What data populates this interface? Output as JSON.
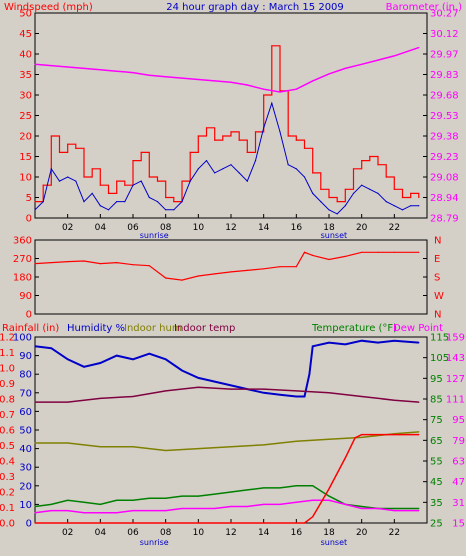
{
  "header": {
    "wind_title": "Windspeed (mph)",
    "graph_title": "24 hour graph day : March 15 2009",
    "baro_title": "Barometer (in.)"
  },
  "xaxis": {
    "ticks": [
      "02",
      "04",
      "06",
      "08",
      "10",
      "12",
      "14",
      "16",
      "18",
      "20",
      "22"
    ],
    "sunrise_label": "sunrise",
    "sunset_label": "sunset"
  },
  "panel3_header": {
    "rain_label": "Rainfall (in)",
    "humidity_label": "Humidity %",
    "indoor_hum_label": "Indoor hum",
    "indoor_temp_label": "Indoor temp",
    "temp_label": "Temperature (°F)",
    "dew_label": "Dew Point"
  },
  "colors": {
    "background": "#d4d0c8",
    "wind": "#ff0000",
    "avg_wind": "#0000c8",
    "barometer": "#ff00ff",
    "direction": "#ff0000",
    "humidity": "#0000c8",
    "indoor_hum": "#808000",
    "indoor_temp": "#800040",
    "temperature": "#008000",
    "dew_point": "#ff00ff",
    "rain": "#ff0000",
    "axis_text": "#000000"
  },
  "chart_data": [
    {
      "id": "wind",
      "type": "line",
      "title": "24 hour graph day : March 15 2009",
      "ylabel": "Windspeed (mph)",
      "y2label": "Barometer (in.)",
      "y_ticks": [
        "0",
        "5",
        "10",
        "15",
        "20",
        "25",
        "30",
        "35",
        "40",
        "45",
        "50"
      ],
      "y2_ticks": [
        "28.79",
        "28.94",
        "29.08",
        "29.23",
        "29.38",
        "29.53",
        "29.68",
        "29.83",
        "29.97",
        "30.12",
        "30.27"
      ],
      "ylim": [
        0,
        50
      ],
      "y2lim": [
        28.79,
        30.27
      ],
      "x_range_hours": [
        0,
        24
      ],
      "series": [
        {
          "name": "Windspeed (mph)",
          "axis": "left",
          "style": "gust",
          "x": [
            0,
            0.5,
            1,
            1.5,
            2,
            2.5,
            3,
            3.5,
            4,
            4.5,
            5,
            5.5,
            6,
            6.5,
            7,
            7.5,
            8,
            8.5,
            9,
            9.5,
            10,
            10.5,
            11,
            11.5,
            12,
            12.5,
            13,
            13.5,
            14,
            14.5,
            15,
            15.5,
            16,
            16.5,
            17,
            17.5,
            18,
            18.5,
            19,
            19.5,
            20,
            20.5,
            21,
            21.5,
            22,
            22.5,
            23,
            23.5
          ],
          "y": [
            4,
            8,
            20,
            16,
            18,
            17,
            10,
            12,
            8,
            6,
            9,
            8,
            14,
            16,
            10,
            9,
            5,
            4,
            9,
            16,
            20,
            22,
            19,
            20,
            21,
            19,
            16,
            21,
            30,
            42,
            31,
            20,
            19,
            17,
            11,
            7,
            5,
            4,
            7,
            12,
            14,
            15,
            13,
            10,
            7,
            5,
            6,
            5
          ]
        },
        {
          "name": "Average wind",
          "axis": "left",
          "style": "avg",
          "x": [
            0,
            0.5,
            1,
            1.5,
            2,
            2.5,
            3,
            3.5,
            4,
            4.5,
            5,
            5.5,
            6,
            6.5,
            7,
            7.5,
            8,
            8.5,
            9,
            9.5,
            10,
            10.5,
            11,
            11.5,
            12,
            12.5,
            13,
            13.5,
            14,
            14.5,
            15,
            15.5,
            16,
            16.5,
            17,
            17.5,
            18,
            18.5,
            19,
            19.5,
            20,
            20.5,
            21,
            21.5,
            22,
            22.5,
            23,
            23.5
          ],
          "y": [
            2,
            4,
            12,
            9,
            10,
            9,
            4,
            6,
            3,
            2,
            4,
            4,
            8,
            9,
            5,
            4,
            2,
            2,
            4,
            9,
            12,
            14,
            11,
            12,
            13,
            11,
            9,
            14,
            22,
            28,
            21,
            13,
            12,
            10,
            6,
            4,
            2,
            1,
            3,
            6,
            8,
            7,
            6,
            4,
            3,
            2,
            3,
            3
          ]
        },
        {
          "name": "Barometer (in.)",
          "axis": "right",
          "style": "baro",
          "x": [
            0,
            1,
            2,
            3,
            4,
            5,
            6,
            7,
            8,
            9,
            10,
            11,
            12,
            13,
            14,
            15,
            16,
            17,
            18,
            19,
            20,
            21,
            22,
            23.5
          ],
          "y": [
            29.9,
            29.89,
            29.88,
            29.87,
            29.86,
            29.85,
            29.84,
            29.82,
            29.81,
            29.8,
            29.79,
            29.78,
            29.77,
            29.75,
            29.72,
            29.7,
            29.72,
            29.78,
            29.83,
            29.87,
            29.9,
            29.93,
            29.96,
            30.02
          ]
        }
      ]
    },
    {
      "id": "direction",
      "type": "line",
      "ylabel": "Wind direction (degrees)",
      "y_ticks": [
        "0",
        "90",
        "180",
        "270",
        "360"
      ],
      "y2_ticks": [
        "N",
        "W",
        "S",
        "E",
        "N"
      ],
      "ylim": [
        0,
        360
      ],
      "x_range_hours": [
        0,
        24
      ],
      "series": [
        {
          "name": "Wind direction",
          "axis": "left",
          "style": "dir",
          "x": [
            0,
            1,
            2,
            3,
            4,
            5,
            6,
            7,
            8,
            9,
            10,
            11,
            12,
            13,
            14,
            15,
            16,
            16.5,
            17,
            18,
            19,
            20,
            21,
            22,
            23.5
          ],
          "y": [
            245,
            250,
            255,
            258,
            245,
            250,
            240,
            235,
            175,
            165,
            185,
            195,
            205,
            212,
            220,
            230,
            230,
            300,
            285,
            265,
            280,
            300,
            300,
            300,
            300
          ]
        }
      ]
    },
    {
      "id": "thermo",
      "type": "line",
      "ylabel": "Rainfall (in)",
      "y2label": "Temperature (°F)",
      "y_ticks": [
        "0.0",
        "0.1",
        "0.2",
        "0.3",
        "0.4",
        "0.5",
        "0.6",
        "0.7",
        "0.8",
        "0.9",
        "1.0",
        "1.1",
        "1.2"
      ],
      "y_ticks_hum": [
        "0",
        "10",
        "20",
        "30",
        "40",
        "50",
        "60",
        "70",
        "80",
        "90",
        "100"
      ],
      "y2_ticks": [
        "25",
        "35",
        "45",
        "55",
        "65",
        "75",
        "85",
        "95",
        "105",
        "115"
      ],
      "y2_ticks_b": [
        "15",
        "31",
        "47",
        "63",
        "79",
        "95",
        "111",
        "127",
        "143",
        "159"
      ],
      "ylim": [
        0,
        100
      ],
      "y2lim": [
        25,
        115
      ],
      "x_range_hours": [
        0,
        24
      ],
      "series": [
        {
          "name": "Humidity %",
          "axis": "hum",
          "style": "hum",
          "x": [
            0,
            1,
            2,
            3,
            4,
            5,
            6,
            7,
            8,
            9,
            10,
            11,
            12,
            13,
            14,
            15,
            16,
            16.5,
            16.8,
            17,
            18,
            19,
            20,
            21,
            22,
            23.5
          ],
          "y": [
            95,
            94,
            88,
            84,
            86,
            90,
            88,
            91,
            88,
            82,
            78,
            76,
            74,
            72,
            70,
            69,
            68,
            68,
            80,
            95,
            97,
            96,
            98,
            97,
            98,
            97
          ]
        },
        {
          "name": "Indoor hum",
          "axis": "hum",
          "style": "ihum",
          "x": [
            0,
            2,
            4,
            6,
            8,
            10,
            12,
            14,
            16,
            18,
            20,
            22,
            23.5
          ],
          "y": [
            43,
            43,
            41,
            41,
            39,
            40,
            41,
            42,
            44,
            45,
            46,
            48,
            49
          ]
        },
        {
          "name": "Indoor temp",
          "axis": "hum",
          "style": "itemp",
          "x": [
            0,
            2,
            4,
            6,
            8,
            10,
            12,
            14,
            16,
            18,
            20,
            22,
            23.5
          ],
          "y": [
            65,
            65,
            67,
            68,
            71,
            73,
            72,
            72,
            71,
            70,
            68,
            66,
            65
          ]
        },
        {
          "name": "Temperature (°F)",
          "axis": "temp",
          "style": "temp",
          "x": [
            0,
            1,
            2,
            3,
            4,
            5,
            6,
            7,
            8,
            9,
            10,
            11,
            12,
            13,
            14,
            15,
            16,
            17,
            18,
            19,
            20,
            21,
            22,
            23.5
          ],
          "y": [
            33,
            34,
            36,
            35,
            34,
            36,
            36,
            37,
            37,
            38,
            38,
            39,
            40,
            41,
            42,
            42,
            43,
            43,
            38,
            34,
            33,
            32,
            32,
            32
          ]
        },
        {
          "name": "Dew Point",
          "axis": "temp",
          "style": "dew",
          "x": [
            0,
            1,
            2,
            3,
            4,
            5,
            6,
            7,
            8,
            9,
            10,
            11,
            12,
            13,
            14,
            15,
            16,
            17,
            18,
            19,
            20,
            21,
            22,
            23.5
          ],
          "y": [
            30,
            31,
            31,
            30,
            30,
            30,
            31,
            31,
            31,
            32,
            32,
            32,
            33,
            33,
            34,
            34,
            35,
            36,
            36,
            34,
            32,
            32,
            31,
            31
          ]
        },
        {
          "name": "Rainfall (in)",
          "axis": "rain",
          "style": "rain",
          "x": [
            0,
            16.5,
            17,
            18,
            19,
            19.6,
            20,
            23.5
          ],
          "y": [
            0,
            0,
            0.04,
            0.22,
            0.42,
            0.55,
            0.57,
            0.57
          ]
        }
      ]
    }
  ]
}
